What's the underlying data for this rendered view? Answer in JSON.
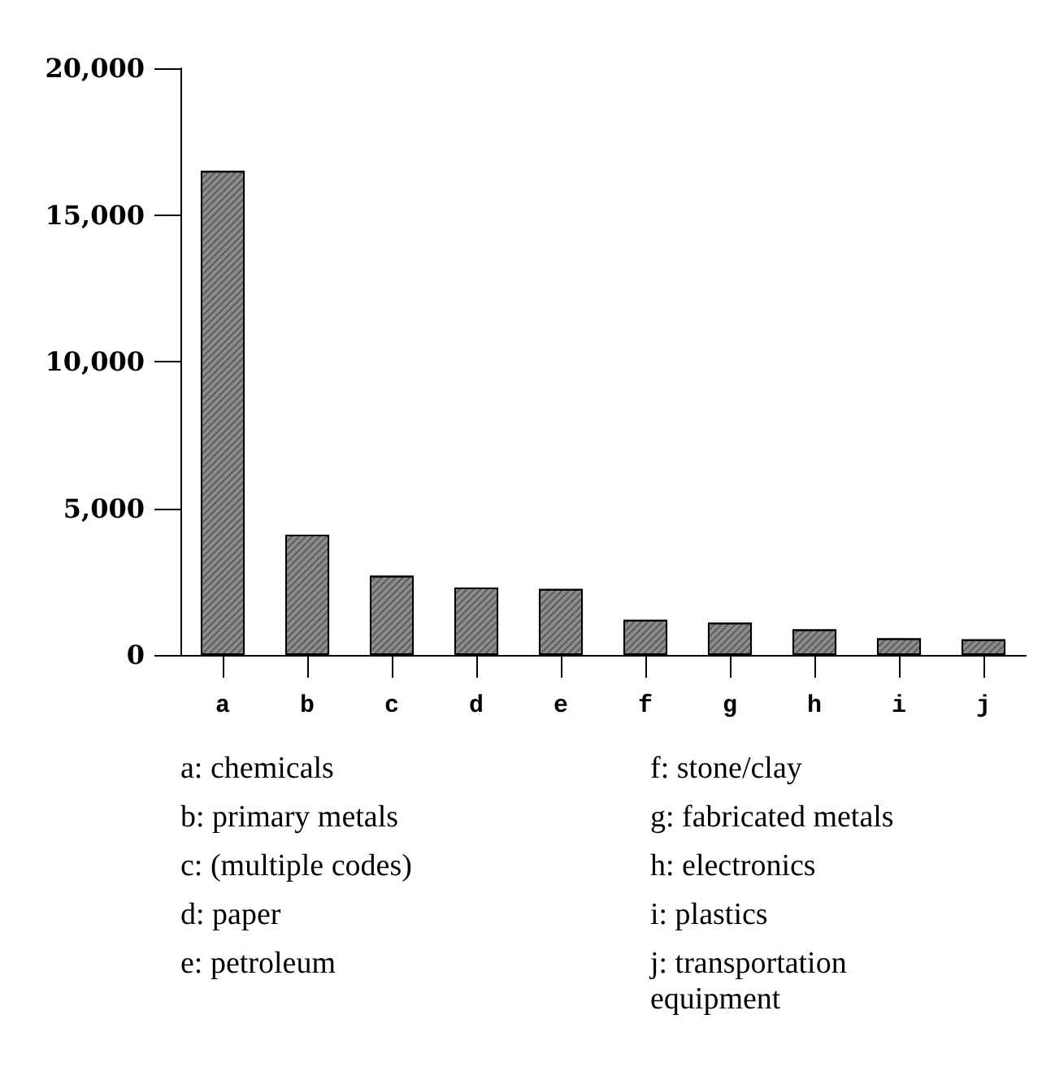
{
  "chart_data": {
    "type": "bar",
    "categories": [
      "a",
      "b",
      "c",
      "d",
      "e",
      "f",
      "g",
      "h",
      "i",
      "j"
    ],
    "values": [
      16500,
      4100,
      2700,
      2300,
      2250,
      1200,
      1100,
      870,
      570,
      530
    ],
    "color": "#8c8c8c",
    "ylim": [
      0,
      20000
    ],
    "yticks": [
      {
        "value": 0,
        "label": "0"
      },
      {
        "value": 5000,
        "label": "5,000"
      },
      {
        "value": 10000,
        "label": "10,000"
      },
      {
        "value": 15000,
        "label": "15,000"
      },
      {
        "value": 20000,
        "label": "20,000"
      }
    ],
    "grid": false,
    "annotations": [
      "a: chemicals",
      "b: primary metals",
      "c: (multiple codes)",
      "d: paper",
      "e: petroleum",
      "f: stone/clay",
      "g: fabricated metals",
      "h: electronics",
      "i: plastics",
      "j: transportation equipment"
    ]
  }
}
